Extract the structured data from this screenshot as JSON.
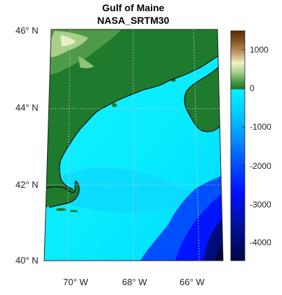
{
  "figure": {
    "title_line1": "Gulf of Maine",
    "title_line2": "NASA_SRTM30"
  },
  "map": {
    "lat_labels": [
      "46° N",
      "44° N",
      "42° N",
      "40° N"
    ],
    "lon_labels": [
      "70° W",
      "68° W",
      "66° W"
    ],
    "colors": {
      "deep_ocean": "#000a6a",
      "mid_ocean": "#0010ff",
      "shelf_water": "#00e8ff",
      "shallow_water": "#10f0ff",
      "lowland": "#1f7a2a",
      "upland": "#5aa04a",
      "highland": "#e8f0c0",
      "grid": "#c8c8c8"
    }
  },
  "colorbar": {
    "tick_labels": [
      "1000",
      "0",
      "-1000",
      "-2000",
      "-3000",
      "-4000"
    ],
    "range": [
      -4500,
      1500
    ],
    "ticks": [
      1000,
      0,
      -1000,
      -2000,
      -3000,
      -4000
    ]
  }
}
